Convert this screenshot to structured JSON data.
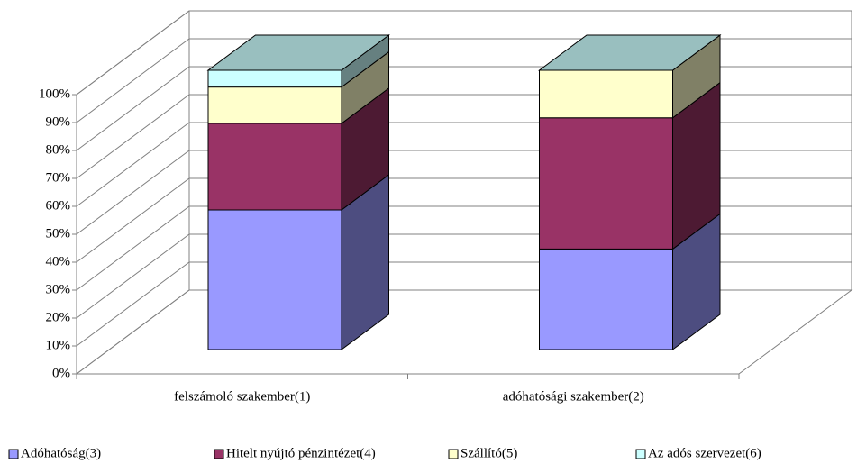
{
  "chart_data": {
    "type": "bar3d_stacked",
    "categories": [
      "felszámoló szakember(1)",
      "adóhatósági szakember(2)"
    ],
    "series": [
      {
        "name": "Adóhatóság(3)",
        "color": "#9999FF",
        "values": [
          50,
          36
        ]
      },
      {
        "name": "Hitelt nyújtó pénzintézet(4)",
        "color": "#993366",
        "values": [
          31,
          47
        ]
      },
      {
        "name": "Szállító(5)",
        "color": "#FFFFCC",
        "values": [
          13,
          17
        ]
      },
      {
        "name": "Az adós szervezet(6)",
        "color": "#CCFFFF",
        "values": [
          6,
          0
        ]
      }
    ],
    "ylim": [
      0,
      100
    ],
    "yticks": [
      {
        "value": 0,
        "label": "0%"
      },
      {
        "value": 10,
        "label": "10%"
      },
      {
        "value": 20,
        "label": "20%"
      },
      {
        "value": 30,
        "label": "30%"
      },
      {
        "value": 40,
        "label": "40%"
      },
      {
        "value": 50,
        "label": "50%"
      },
      {
        "value": 60,
        "label": "60%"
      },
      {
        "value": 70,
        "label": "70%"
      },
      {
        "value": 80,
        "label": "80%"
      },
      {
        "value": 90,
        "label": "90%"
      },
      {
        "value": 100,
        "label": "100%"
      }
    ],
    "grid": true,
    "legend": "bottom"
  }
}
